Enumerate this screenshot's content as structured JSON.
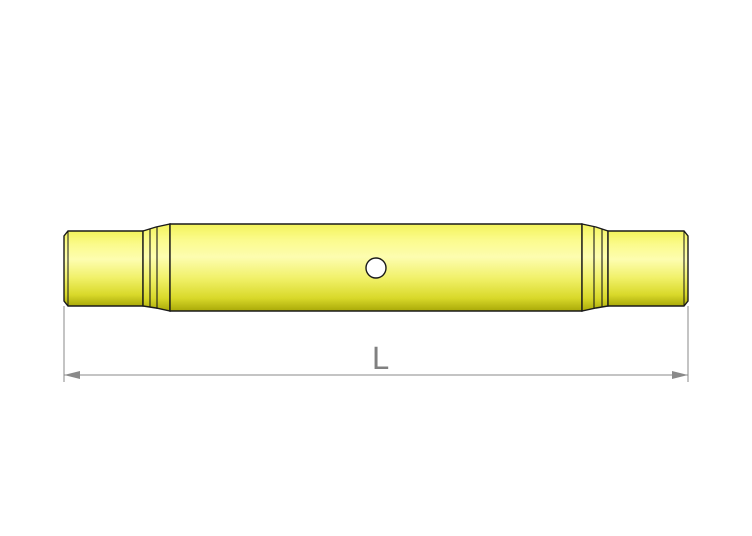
{
  "diagram": {
    "dimension_label": "L",
    "colors": {
      "body_light": "#fbfb9e",
      "body_mid": "#e8e84a",
      "body_dark": "#b8b810",
      "outline": "#1a1a1a",
      "dimension_line": "#8a8a8a",
      "background": "#ffffff"
    }
  }
}
